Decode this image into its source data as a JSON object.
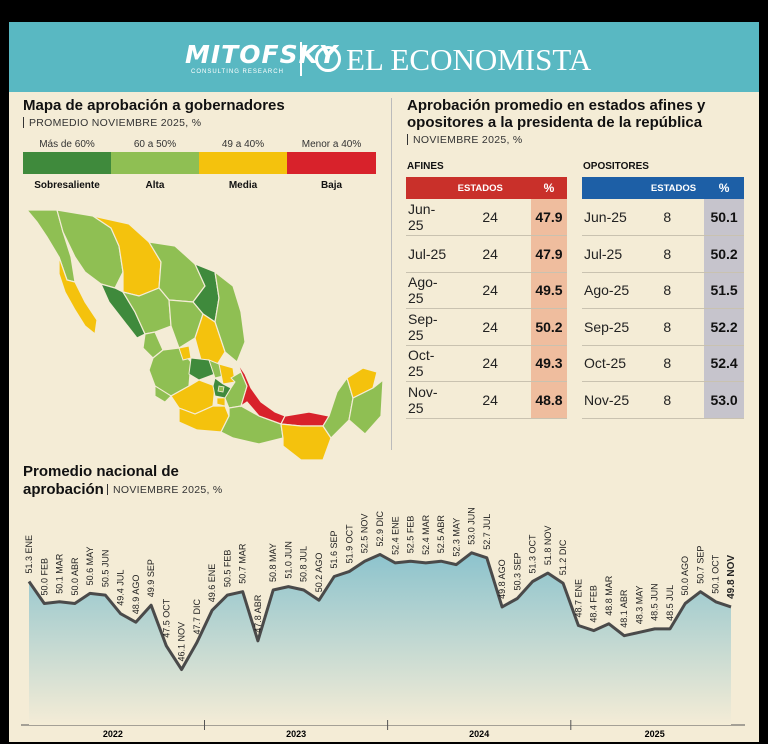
{
  "brand": {
    "left_logo": "MITOFSKY",
    "left_sub": "CONSULTING RESEARCH",
    "right_logo": "EL ECONOMISTA"
  },
  "map_section": {
    "title": "Mapa de aprobación a gobernadores",
    "subtitle": "PROMEDIO NOVIEMBRE 2025, %",
    "legend": [
      {
        "range": "Más de 60%",
        "category": "Sobresaliente",
        "color": "#3f8a3c"
      },
      {
        "range": "60 a 50%",
        "category": "Alta",
        "color": "#8fbf53"
      },
      {
        "range": "49 a 40%",
        "category": "Media",
        "color": "#f4c20d"
      },
      {
        "range": "Menor a 40%",
        "category": "Baja",
        "color": "#d8222b"
      }
    ]
  },
  "table_section": {
    "title_line1": "Aprobación promedio en estados afines y",
    "title_line2": "opositores a la presidenta de la república",
    "subtitle": "NOVIEMBRE 2025, %",
    "afines": {
      "label": "AFINES",
      "col_states": "ESTADOS",
      "col_pct": "%",
      "header_color": "#c9302a",
      "value_bg": "#efbd9e",
      "rows": [
        {
          "month": "Jun-25",
          "states": "24",
          "pct": "47.9"
        },
        {
          "month": "Jul-25",
          "states": "24",
          "pct": "47.9"
        },
        {
          "month": "Ago-25",
          "states": "24",
          "pct": "49.5"
        },
        {
          "month": "Sep-25",
          "states": "24",
          "pct": "50.2"
        },
        {
          "month": "Oct-25",
          "states": "24",
          "pct": "49.3"
        },
        {
          "month": "Nov-25",
          "states": "24",
          "pct": "48.8"
        }
      ]
    },
    "opositores": {
      "label": "OPOSITORES",
      "col_states": "ESTADOS",
      "col_pct": "%",
      "header_color": "#1d5fa6",
      "value_bg": "#c6c4cc",
      "rows": [
        {
          "month": "Jun-25",
          "states": "8",
          "pct": "50.1"
        },
        {
          "month": "Jul-25",
          "states": "8",
          "pct": "50.2"
        },
        {
          "month": "Ago-25",
          "states": "8",
          "pct": "51.5"
        },
        {
          "month": "Sep-25",
          "states": "8",
          "pct": "52.2"
        },
        {
          "month": "Oct-25",
          "states": "8",
          "pct": "52.4"
        },
        {
          "month": "Nov-25",
          "states": "8",
          "pct": "53.0"
        }
      ]
    }
  },
  "line_section": {
    "title_line1": "Promedio nacional de",
    "title_line2": "aprobación",
    "subtitle": "NOVIEMBRE 2025, %"
  },
  "chart_data": {
    "type": "area",
    "title": "Promedio nacional de aprobación",
    "subtitle": "NOVIEMBRE 2025, %",
    "years": [
      "2022",
      "2023",
      "2024",
      "2025"
    ],
    "months": [
      "ENE",
      "FEB",
      "MAR",
      "ABR",
      "MAY",
      "JUN",
      "JUL",
      "AGO",
      "SEP",
      "OCT",
      "NOV",
      "DIC"
    ],
    "x": [
      "2022-01",
      "2022-02",
      "2022-03",
      "2022-04",
      "2022-05",
      "2022-06",
      "2022-07",
      "2022-08",
      "2022-09",
      "2022-10",
      "2022-11",
      "2022-12",
      "2023-01",
      "2023-02",
      "2023-03",
      "2023-04",
      "2023-05",
      "2023-06",
      "2023-07",
      "2023-08",
      "2023-09",
      "2023-10",
      "2023-11",
      "2023-12",
      "2024-01",
      "2024-02",
      "2024-03",
      "2024-04",
      "2024-05",
      "2024-06",
      "2024-07",
      "2024-08",
      "2024-09",
      "2024-10",
      "2024-11",
      "2024-12",
      "2025-01",
      "2025-02",
      "2025-03",
      "2025-04",
      "2025-05",
      "2025-06",
      "2025-07",
      "2025-08",
      "2025-09",
      "2025-10",
      "2025-11"
    ],
    "values": [
      51.3,
      50.0,
      50.1,
      50.0,
      50.6,
      50.5,
      49.4,
      48.9,
      49.9,
      47.5,
      46.1,
      47.7,
      49.6,
      50.5,
      50.7,
      47.8,
      50.8,
      51.0,
      50.8,
      50.2,
      51.6,
      51.9,
      52.5,
      52.9,
      52.4,
      52.5,
      52.4,
      52.5,
      52.3,
      53.0,
      52.7,
      49.8,
      50.3,
      51.3,
      51.8,
      51.2,
      48.7,
      48.4,
      48.8,
      48.1,
      48.3,
      48.5,
      48.5,
      50.0,
      50.7,
      50.1,
      49.8
    ],
    "labels": [
      "51.3 ENE",
      "50.0 FEB",
      "50.1 MAR",
      "50.0 ABR",
      "50.6 MAY",
      "50.5 JUN",
      "49.4 JUL",
      "48.9 AGO",
      "49.9 SEP",
      "47.5 OCT",
      "46.1 NOV",
      "47.7 DIC",
      "49.6 ENE",
      "50.5 FEB",
      "50.7 MAR",
      "47.8 ABR",
      "50.8 MAY",
      "51.0 JUN",
      "50.8 JUL",
      "50.2 AGO",
      "51.6 SEP",
      "51.9 OCT",
      "52.5 NOV",
      "52.9 DIC",
      "52.4 ENE",
      "52.5 FEB",
      "52.4 MAR",
      "52.5 ABR",
      "52.3 MAY",
      "53.0 JUN",
      "52.7 JUL",
      "49.8 AGO",
      "50.3 SEP",
      "51.3 OCT",
      "51.8 NOV",
      "51.2 DIC",
      "48.7 ENE",
      "48.4 FEB",
      "48.8 MAR",
      "48.1 ABR",
      "48.3 MAY",
      "48.5 JUN",
      "48.5 JUL",
      "50.0 AGO",
      "50.7 SEP",
      "50.1 OCT",
      "49.8 NOV"
    ],
    "ylim": [
      43,
      56
    ],
    "grid": false,
    "line_color": "#4a4a4a",
    "fill_top": "#8cc3cd",
    "fill_bottom": "#f4ecd6"
  }
}
